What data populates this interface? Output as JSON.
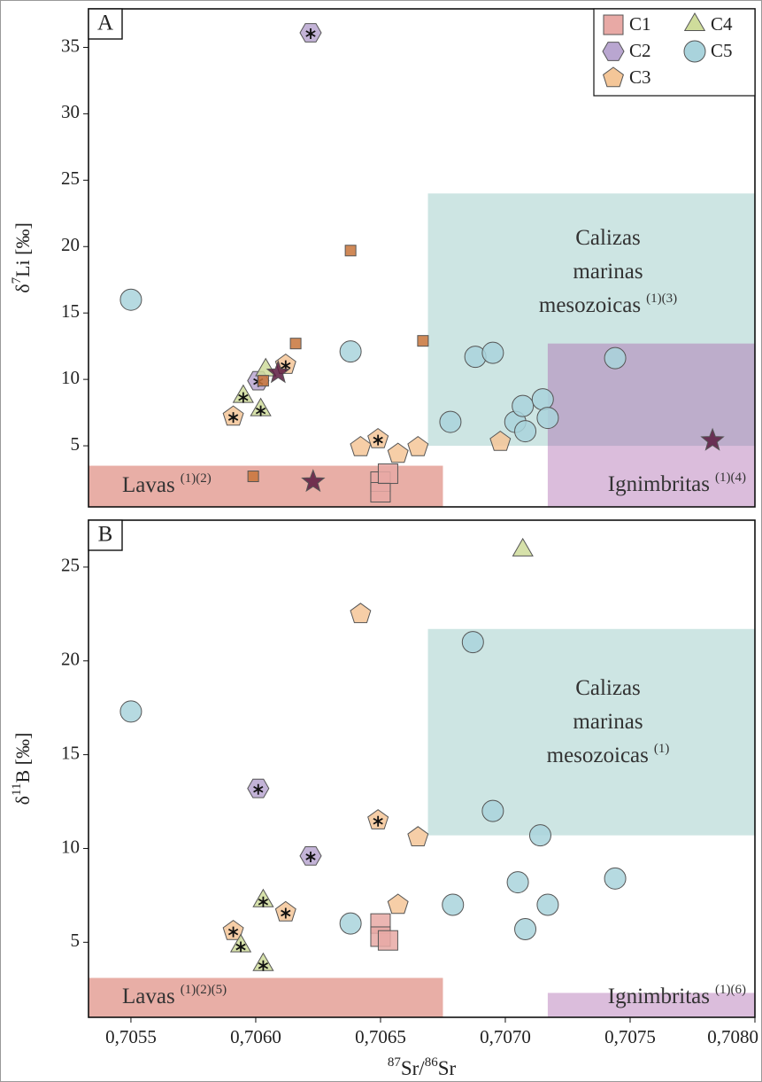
{
  "chart_data": [
    {
      "type": "scatter",
      "panel": "A",
      "ylabel_parts": [
        {
          "text": "δ"
        },
        {
          "text": "7",
          "sup": true
        },
        {
          "text": "Li [‰]"
        }
      ],
      "xlim": [
        0.70533,
        0.708
      ],
      "ylim": [
        0.4,
        37.9
      ],
      "yticks": [
        5,
        10,
        15,
        20,
        25,
        30,
        35
      ],
      "legend": "upper right",
      "regions": [
        {
          "lines": [
            "Lavas"
          ],
          "note": "(1)(2)",
          "x": [
            0.70533,
            0.70675
          ],
          "y": [
            0.4,
            3.5
          ],
          "color": "#d9786a",
          "opacity": 0.6
        },
        {
          "lines": [
            "Calizas",
            "marinas",
            "mesozoicas"
          ],
          "note": "(1)(3)",
          "x": [
            0.70669,
            0.708
          ],
          "y": [
            5.0,
            24.0
          ],
          "color": "#6fb5b0",
          "opacity": 0.35
        },
        {
          "lines": [
            "Ignimbritas"
          ],
          "note": "(1)(4)",
          "x": [
            0.70717,
            0.708
          ],
          "y": [
            0.4,
            12.7
          ],
          "color": "#a45aa8",
          "opacity": 0.4
        }
      ],
      "series": [
        {
          "name": "C1",
          "color": "#e8a9a5",
          "marker": "square",
          "x": [
            0.7065,
            0.7065,
            0.70653
          ],
          "values": [
            2.3,
            1.5,
            2.9
          ]
        },
        {
          "name": "C2",
          "color": "#b9a6d0",
          "marker": "hexagon",
          "x": [
            0.70622,
            0.70601
          ],
          "values": [
            36.1,
            9.9
          ],
          "asterisk": [
            true,
            true
          ]
        },
        {
          "name": "C3",
          "color": "#f4c698",
          "marker": "pentagon",
          "x": [
            0.70591,
            0.70612,
            0.70642,
            0.70649,
            0.70657,
            0.70665,
            0.70698
          ],
          "values": [
            7.2,
            11.1,
            4.9,
            5.5,
            4.4,
            4.9,
            5.3
          ],
          "asterisk": [
            true,
            true,
            false,
            true,
            false,
            false,
            false
          ]
        },
        {
          "name": "C4",
          "color": "#cfdc9b",
          "marker": "triangle",
          "x": [
            0.70595,
            0.70602,
            0.70604
          ],
          "values": [
            8.7,
            7.7,
            10.7
          ],
          "asterisk": [
            true,
            true,
            false
          ]
        },
        {
          "name": "C5",
          "color": "#a9d3dc",
          "marker": "circle",
          "x": [
            0.7055,
            0.70638,
            0.70678,
            0.70688,
            0.70695,
            0.70704,
            0.70707,
            0.70708,
            0.70715,
            0.70717,
            0.70744
          ],
          "values": [
            16.0,
            12.1,
            6.8,
            11.7,
            12.0,
            6.8,
            8.0,
            6.1,
            8.5,
            7.1,
            11.6
          ]
        },
        {
          "color": "#c8743a",
          "marker": "small-square",
          "x": [
            0.70638,
            0.70616,
            0.70667,
            0.70603,
            0.70599
          ],
          "values": [
            19.7,
            12.7,
            12.9,
            9.9,
            2.7
          ]
        },
        {
          "color": "#5a1a40",
          "marker": "star",
          "x": [
            0.70623,
            0.70609,
            0.70783
          ],
          "values": [
            2.3,
            10.5,
            5.4
          ]
        }
      ]
    },
    {
      "type": "scatter",
      "panel": "B",
      "ylabel_parts": [
        {
          "text": "δ"
        },
        {
          "text": "11",
          "sup": true
        },
        {
          "text": "B [‰]"
        }
      ],
      "xlabel_parts": [
        {
          "text": "87",
          "sup": true
        },
        {
          "text": "Sr/"
        },
        {
          "text": "86",
          "sup": true
        },
        {
          "text": "Sr"
        }
      ],
      "xlim": [
        0.70533,
        0.708
      ],
      "ylim": [
        1,
        27.5
      ],
      "yticks": [
        5,
        10,
        15,
        20,
        25
      ],
      "xticks": [
        {
          "value": 0.7055,
          "label": "0,7055"
        },
        {
          "value": 0.706,
          "label": "0,7060"
        },
        {
          "value": 0.7065,
          "label": "0,7065"
        },
        {
          "value": 0.707,
          "label": "0,7070"
        },
        {
          "value": 0.7075,
          "label": "0,7075"
        },
        {
          "value": 0.708,
          "label": "0,7080"
        }
      ],
      "regions": [
        {
          "lines": [
            "Lavas"
          ],
          "note": "(1)(2)(5)",
          "x": [
            0.70533,
            0.70675
          ],
          "y": [
            1,
            3.1
          ],
          "color": "#d9786a",
          "opacity": 0.6
        },
        {
          "lines": [
            "Calizas",
            "marinas",
            "mesozoicas"
          ],
          "note": "(1)",
          "x": [
            0.70669,
            0.708
          ],
          "y": [
            10.7,
            21.7
          ],
          "color": "#6fb5b0",
          "opacity": 0.35
        },
        {
          "lines": [
            "Ignimbritas"
          ],
          "note": "(1)(6)",
          "x": [
            0.70717,
            0.708
          ],
          "y": [
            1,
            2.3
          ],
          "color": "#a45aa8",
          "opacity": 0.4
        }
      ],
      "series": [
        {
          "color": "#e8a9a5",
          "marker": "square",
          "x": [
            0.7065,
            0.7065,
            0.70653
          ],
          "values": [
            6.0,
            5.3,
            5.1
          ]
        },
        {
          "color": "#b9a6d0",
          "marker": "hexagon",
          "x": [
            0.70601,
            0.70622
          ],
          "values": [
            13.2,
            9.6
          ],
          "asterisk": [
            true,
            true
          ]
        },
        {
          "color": "#f4c698",
          "marker": "pentagon",
          "x": [
            0.70642,
            0.70649,
            0.70665,
            0.70657,
            0.70612,
            0.70591
          ],
          "values": [
            22.5,
            11.5,
            10.6,
            7.0,
            6.6,
            5.6
          ],
          "asterisk": [
            false,
            true,
            false,
            false,
            true,
            true
          ]
        },
        {
          "color": "#cfdc9b",
          "marker": "triangle",
          "x": [
            0.70603,
            0.70594,
            0.70603,
            0.70707
          ],
          "values": [
            7.2,
            4.8,
            3.8,
            25.9
          ],
          "asterisk": [
            true,
            true,
            true,
            false
          ]
        },
        {
          "color": "#a9d3dc",
          "marker": "circle",
          "x": [
            0.7055,
            0.70638,
            0.70687,
            0.70695,
            0.70679,
            0.70705,
            0.70714,
            0.70717,
            0.70708,
            0.70744
          ],
          "values": [
            17.3,
            6.0,
            21.0,
            12.0,
            7.0,
            8.2,
            10.7,
            7.0,
            5.7,
            8.4
          ]
        }
      ]
    }
  ]
}
